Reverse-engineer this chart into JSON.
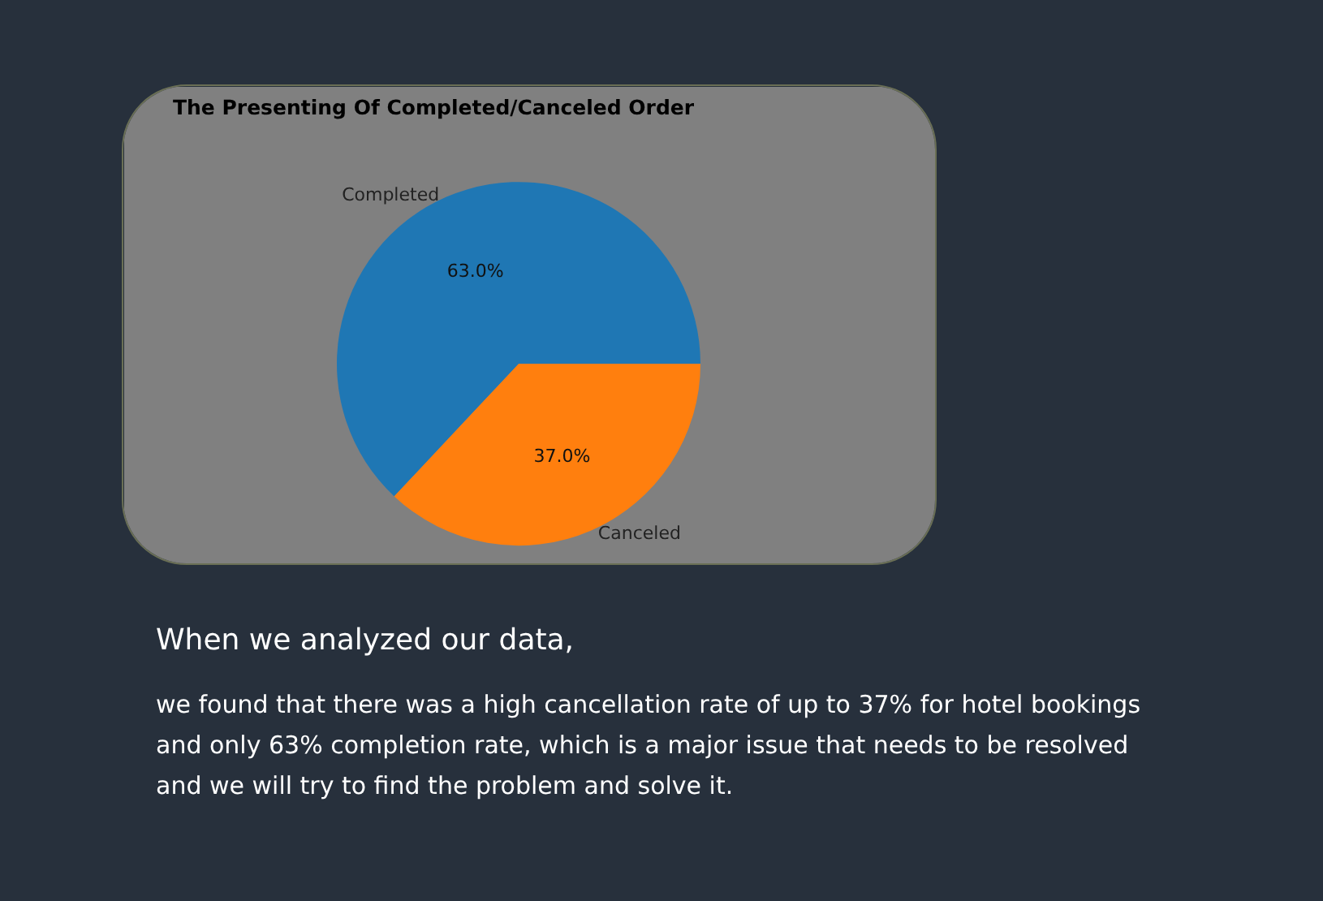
{
  "chart_data": {
    "type": "pie",
    "title": "The Presenting Of Completed/Canceled Order",
    "categories": [
      "Completed",
      "Canceled"
    ],
    "values": [
      63.0,
      37.0
    ],
    "colors": [
      "#1f77b4",
      "#ff7f0e"
    ],
    "value_labels": [
      "63.0%",
      "37.0%"
    ],
    "annotations": [
      "When we analyzed our data,",
      "we found that there was a high cancellation rate of up to 37% for hotel bookings and only 63% completion rate, which is a major issue that needs to be resolved and we will try to find the problem and solve it."
    ]
  }
}
